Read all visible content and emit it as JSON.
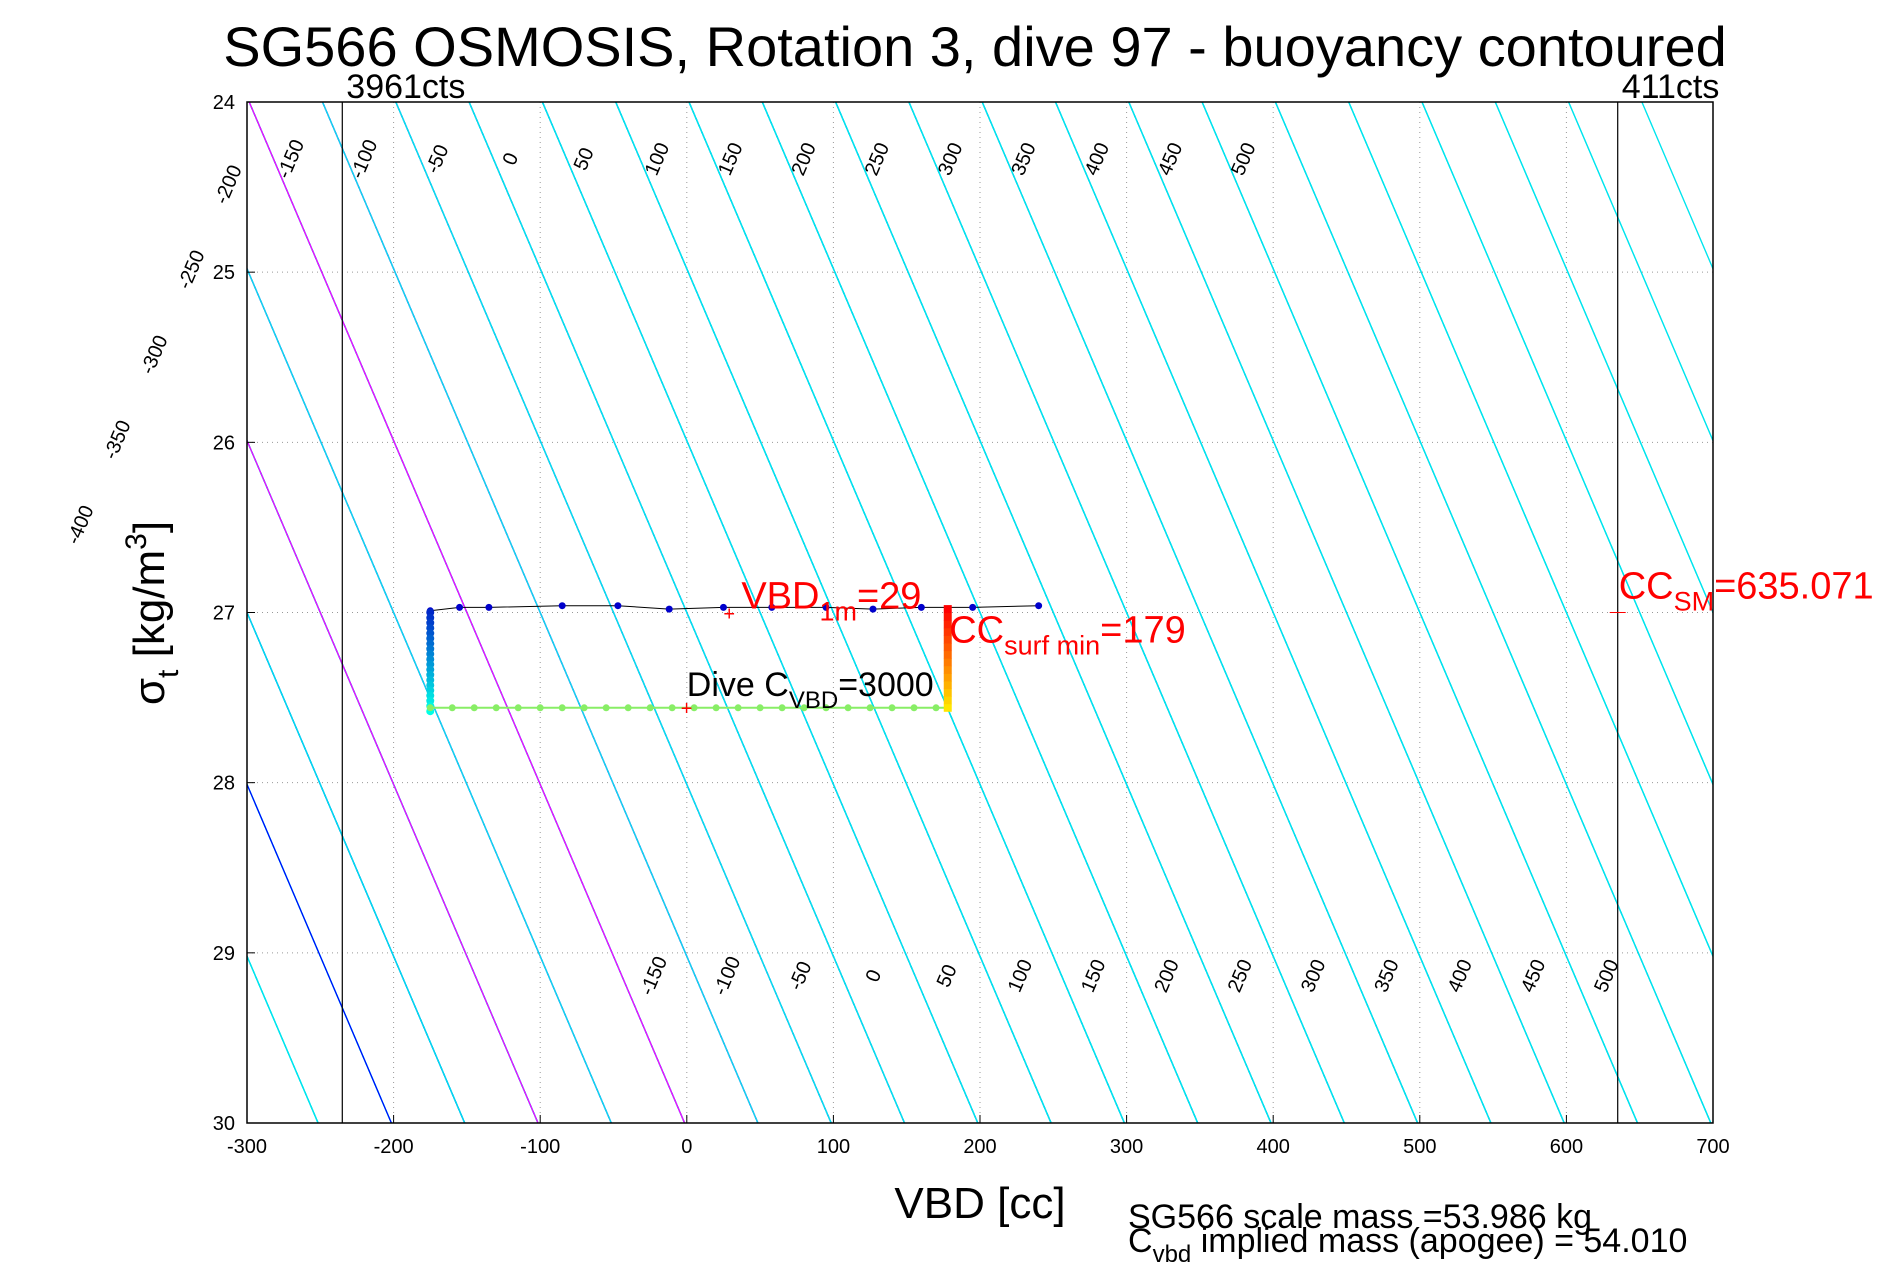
{
  "chart_data": {
    "type": "line",
    "title": "SG566 OSMOSIS, Rotation 3, dive 97 - buoyancy contoured",
    "xlabel": "VBD [cc]",
    "ylabel": "σt [kg/m3]",
    "ylabel_parts": {
      "sigma": "σ",
      "sub": "t",
      "rest": " [kg/m",
      "sup": "3",
      "close": "]"
    },
    "xlim": [
      -300,
      700
    ],
    "ylim": [
      24,
      30
    ],
    "y_reversed": true,
    "grid": true,
    "x_ticks": [
      -300,
      -200,
      -100,
      0,
      100,
      200,
      300,
      400,
      500,
      600,
      700
    ],
    "y_ticks": [
      24,
      25,
      26,
      27,
      28,
      29,
      30
    ],
    "buoyancy_contours": {
      "values": [
        -400,
        -350,
        -300,
        -250,
        -200,
        -150,
        -100,
        -50,
        0,
        50,
        100,
        150,
        200,
        250,
        300,
        350,
        400,
        450,
        500
      ],
      "zero_color": "#0000ff",
      "highlight_color": "#ff00ff",
      "highlight_values": [
        100,
        200
      ],
      "default_color": "#00e5ee",
      "top_labels": [
        "-400",
        "-350",
        "-300",
        "-250",
        "-200",
        "-150",
        "-100",
        "-50",
        "0",
        "50",
        "100",
        "150",
        "200",
        "250",
        "300",
        "350",
        "400",
        "450",
        "500"
      ],
      "bottom_labels": [
        "-150",
        "-100",
        "-50",
        "0",
        "50",
        "100",
        "150",
        "200",
        "250",
        "300",
        "350",
        "400",
        "450",
        "500"
      ]
    },
    "reference_lines": [
      {
        "x": -235,
        "label": "3961cts"
      },
      {
        "x": 635,
        "label": "411cts"
      }
    ],
    "series": [
      {
        "top_path": [
          [
            -175,
            26.99
          ],
          [
            -155,
            26.97
          ],
          [
            -135,
            26.97
          ],
          [
            -85,
            26.96
          ],
          [
            -47,
            26.96
          ],
          [
            -12,
            26.98
          ],
          [
            25,
            26.97
          ],
          [
            58,
            26.97
          ],
          [
            95,
            26.97
          ],
          [
            127,
            26.98
          ],
          [
            160,
            26.97
          ],
          [
            195,
            26.97
          ],
          [
            240,
            26.96
          ]
        ],
        "left_edge": [
          [
            -175,
            27.0
          ],
          [
            -175,
            27.58
          ]
        ],
        "bottom_path_x": [
          -175,
          -160,
          -145,
          -130,
          -115,
          -100,
          -85,
          -70,
          -55,
          -40,
          -25,
          -10,
          5,
          20,
          35,
          50,
          65,
          80,
          95,
          110,
          125,
          140,
          155,
          170,
          178
        ],
        "bottom_y": 27.56,
        "right_edge": [
          [
            178,
            26.98
          ],
          [
            178,
            27.56
          ]
        ]
      }
    ],
    "annotations": {
      "vbd_1m": {
        "text": "VBD",
        "sub": "1m",
        "rest": "=29",
        "x": 29,
        "y": 27.0,
        "color": "#ff0000"
      },
      "cc_surf_min": {
        "text": "CC",
        "sub": "surf min",
        "rest": "=179",
        "x": 179,
        "y": 27.0,
        "color": "#ff0000"
      },
      "dive_c_vbd": {
        "text": "Dive C",
        "sub": "VBD",
        "rest": "=3000",
        "x": 0,
        "y": 27.55,
        "color": "#000000"
      },
      "cc_sm": {
        "text": "CC",
        "sub": "SM",
        "rest": "=635.071",
        "x": 635,
        "y": 27.0,
        "color": "#ff0000"
      }
    },
    "footer": {
      "scale_mass": "SG566 scale mass =53.986 kg",
      "implied_mass_head": "C",
      "implied_mass_sub": "vbd",
      "implied_mass_rest": " implied mass (apogee) = 54.010"
    }
  }
}
